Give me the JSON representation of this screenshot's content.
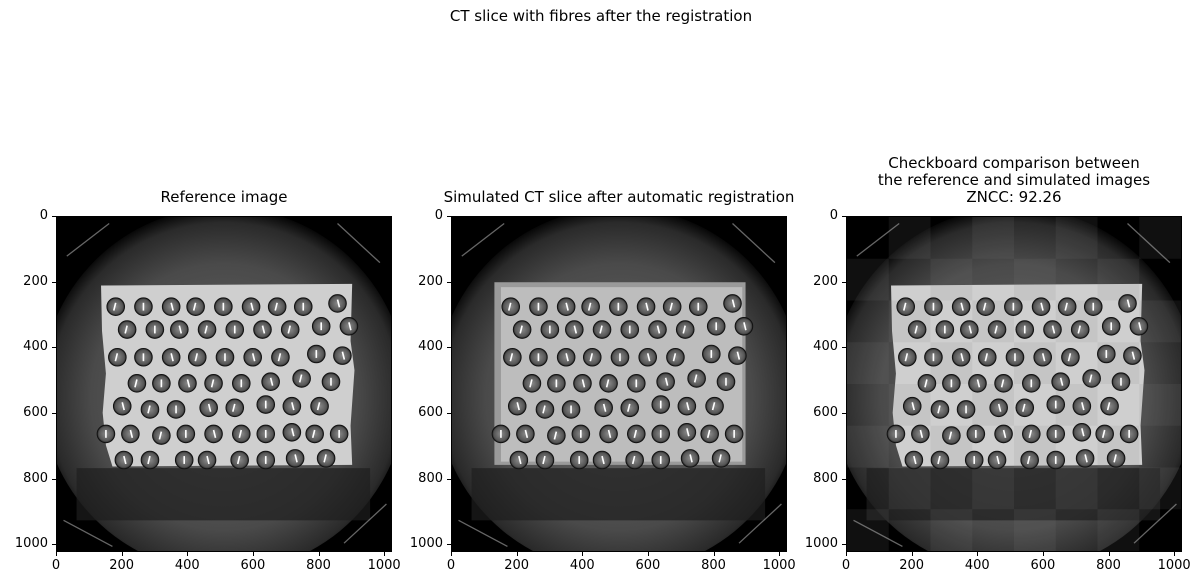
{
  "suptitle": "CT slice with fibres after the registration",
  "panels": [
    {
      "id": "reference",
      "title_lines": [
        "Reference image"
      ],
      "variant": "reference"
    },
    {
      "id": "simulated",
      "title_lines": [
        "Simulated CT slice after automatic registration"
      ],
      "variant": "simulated"
    },
    {
      "id": "checkerboard",
      "title_lines": [
        "Checkboard comparison between",
        "the reference and simulated images",
        "ZNCC: 92.26"
      ],
      "variant": "checker"
    }
  ],
  "axes": {
    "x_ticks": [
      "0",
      "200",
      "400",
      "600",
      "800",
      "1000"
    ],
    "y_ticks": [
      "0",
      "200",
      "400",
      "600",
      "800",
      "1000"
    ],
    "tick_values": [
      0,
      200,
      400,
      600,
      800,
      1000
    ],
    "range": [
      0,
      1024
    ]
  },
  "fibres": [
    [
      180,
      275
    ],
    [
      265,
      275
    ],
    [
      350,
      275
    ],
    [
      425,
      275
    ],
    [
      510,
      275
    ],
    [
      595,
      275
    ],
    [
      675,
      275
    ],
    [
      755,
      275
    ],
    [
      860,
      265
    ],
    [
      215,
      345
    ],
    [
      300,
      345
    ],
    [
      375,
      345
    ],
    [
      460,
      345
    ],
    [
      545,
      345
    ],
    [
      630,
      345
    ],
    [
      715,
      345
    ],
    [
      810,
      335
    ],
    [
      895,
      335
    ],
    [
      185,
      430
    ],
    [
      265,
      430
    ],
    [
      350,
      430
    ],
    [
      430,
      430
    ],
    [
      515,
      430
    ],
    [
      600,
      430
    ],
    [
      685,
      430
    ],
    [
      795,
      420
    ],
    [
      875,
      425
    ],
    [
      245,
      510
    ],
    [
      320,
      510
    ],
    [
      400,
      510
    ],
    [
      480,
      510
    ],
    [
      565,
      510
    ],
    [
      655,
      505
    ],
    [
      750,
      495
    ],
    [
      840,
      505
    ],
    [
      200,
      580
    ],
    [
      285,
      590
    ],
    [
      365,
      590
    ],
    [
      465,
      585
    ],
    [
      545,
      585
    ],
    [
      640,
      575
    ],
    [
      720,
      580
    ],
    [
      805,
      580
    ],
    [
      150,
      665
    ],
    [
      225,
      665
    ],
    [
      320,
      670
    ],
    [
      395,
      665
    ],
    [
      480,
      665
    ],
    [
      565,
      665
    ],
    [
      640,
      665
    ],
    [
      720,
      660
    ],
    [
      790,
      665
    ],
    [
      865,
      665
    ],
    [
      205,
      745
    ],
    [
      285,
      745
    ],
    [
      390,
      745
    ],
    [
      460,
      745
    ],
    [
      560,
      745
    ],
    [
      640,
      745
    ],
    [
      730,
      740
    ],
    [
      825,
      740
    ]
  ]
}
